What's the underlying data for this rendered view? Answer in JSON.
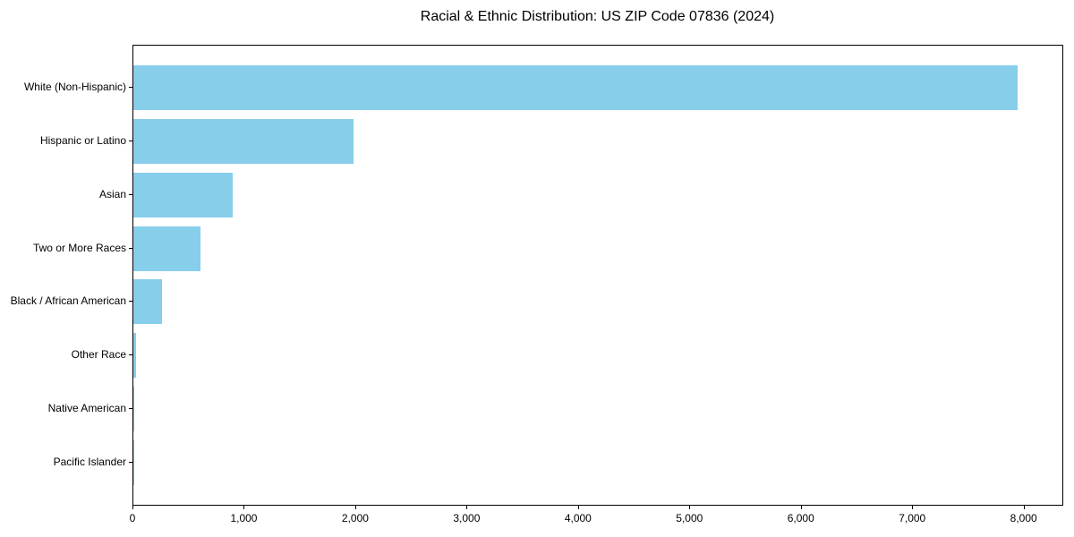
{
  "chart_data": {
    "type": "bar",
    "orientation": "horizontal",
    "title": "Racial & Ethnic Distribution: US ZIP Code 07836 (2024)",
    "xlabel": "",
    "ylabel": "",
    "categories": [
      "White (Non-Hispanic)",
      "Hispanic or Latino",
      "Asian",
      "Two or More Races",
      "Black / African American",
      "Other Race",
      "Native American",
      "Pacific Islander"
    ],
    "values": [
      7940,
      1980,
      890,
      600,
      255,
      28,
      6,
      2
    ],
    "xlim": [
      0,
      8340
    ],
    "x_ticks": [
      0,
      1000,
      2000,
      3000,
      4000,
      5000,
      6000,
      7000,
      8000
    ],
    "x_tick_labels": [
      "0",
      "1,000",
      "2,000",
      "3,000",
      "4,000",
      "5,000",
      "6,000",
      "7,000",
      "8,000"
    ],
    "bar_color": "#87CEEB",
    "spine_color": "#000000",
    "text_color": "#000000",
    "grid": false,
    "legend": null
  }
}
